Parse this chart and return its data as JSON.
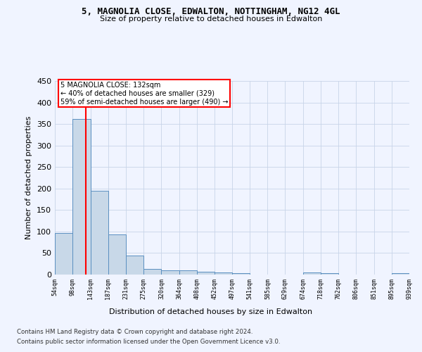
{
  "title1": "5, MAGNOLIA CLOSE, EDWALTON, NOTTINGHAM, NG12 4GL",
  "title2": "Size of property relative to detached houses in Edwalton",
  "xlabel": "Distribution of detached houses by size in Edwalton",
  "ylabel": "Number of detached properties",
  "bin_edges": [
    54,
    98,
    143,
    187,
    231,
    275,
    320,
    364,
    408,
    452,
    497,
    541,
    585,
    629,
    674,
    718,
    762,
    806,
    851,
    895,
    939
  ],
  "bar_values": [
    97,
    362,
    194,
    93,
    45,
    13,
    10,
    10,
    6,
    5,
    3,
    0,
    0,
    0,
    5,
    4,
    0,
    0,
    0,
    3
  ],
  "bar_color": "#c8d8e8",
  "bar_edge_color": "#5a8fc0",
  "red_line_x": 132,
  "annotation_text": "5 MAGNOLIA CLOSE: 132sqm\n← 40% of detached houses are smaller (329)\n59% of semi-detached houses are larger (490) →",
  "ylim": [
    0,
    450
  ],
  "yticks": [
    0,
    50,
    100,
    150,
    200,
    250,
    300,
    350,
    400,
    450
  ],
  "footer_line1": "Contains HM Land Registry data © Crown copyright and database right 2024.",
  "footer_line2": "Contains public sector information licensed under the Open Government Licence v3.0.",
  "bg_color": "#f0f4ff",
  "grid_color": "#c8d4e8"
}
